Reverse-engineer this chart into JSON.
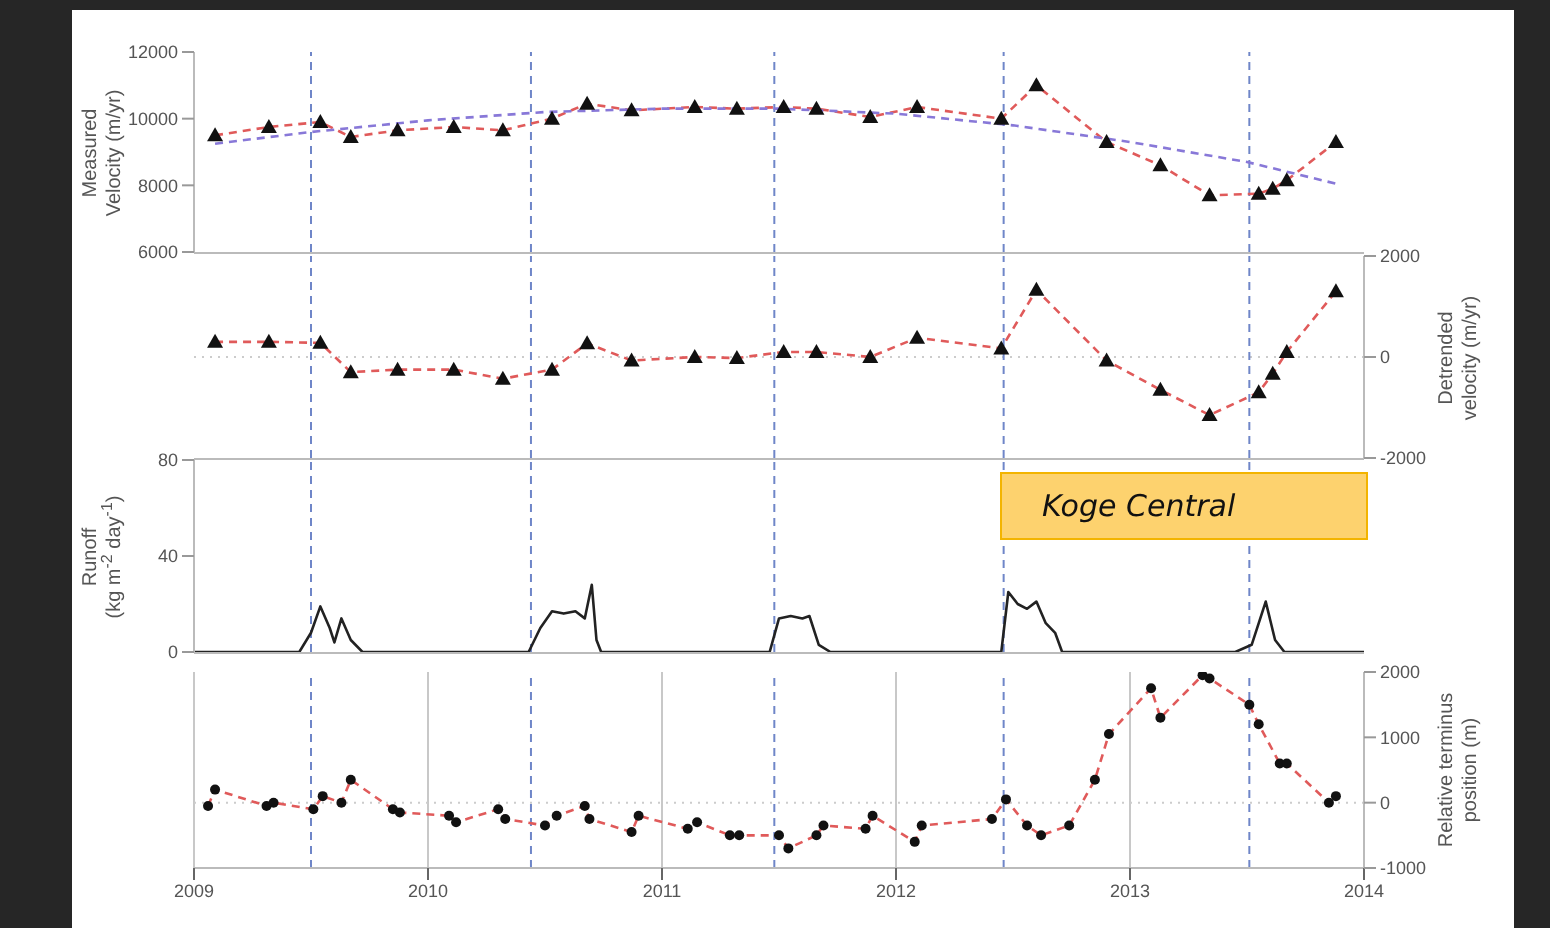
{
  "chart_data": [
    {
      "type": "line",
      "ylabel": "Measured\nVelocity (m/yr)",
      "xlim": [
        2009,
        2014
      ],
      "xticks": [
        2009,
        2010,
        2011,
        2012,
        2013,
        2014
      ],
      "ylim": [
        6000,
        12000
      ],
      "yticks": [
        6000,
        8000,
        10000,
        12000
      ],
      "tick_labels": "y",
      "grid": "x",
      "series": [
        {
          "color": "#e05a5a",
          "marker": "triangle",
          "line_style": "dashed",
          "x": [
            2009.09,
            2009.32,
            2009.54,
            2009.67,
            2009.87,
            2010.11,
            2010.32,
            2010.53,
            2010.68,
            2010.87,
            2011.14,
            2011.32,
            2011.52,
            2011.66,
            2011.89,
            2012.09,
            2012.45,
            2012.6,
            2012.9,
            2013.13,
            2013.34,
            2013.55,
            2013.61,
            2013.67,
            2013.88
          ],
          "values": [
            9500,
            9750,
            9900,
            9450,
            9650,
            9750,
            9650,
            10000,
            10450,
            10250,
            10350,
            10300,
            10350,
            10300,
            10050,
            10350,
            10000,
            11000,
            9300,
            8600,
            7700,
            7750,
            7900,
            8150,
            9300
          ]
        },
        {
          "type": "line",
          "color": "#8878d8",
          "marker": "none",
          "line_style": "dashed",
          "x": [
            2009.09,
            2009.5,
            2010,
            2010.5,
            2011,
            2011.5,
            2012,
            2012.5,
            2013,
            2013.5,
            2013.88
          ],
          "values": [
            9250,
            9600,
            9950,
            10200,
            10300,
            10300,
            10150,
            9800,
            9300,
            8700,
            8050
          ]
        }
      ],
      "ref_lines": [
        {
          "axis": "x",
          "value": 2009.5,
          "color": "#6f86c8",
          "line_style": "dashed"
        },
        {
          "axis": "x",
          "value": 2010.44,
          "color": "#6f86c8",
          "line_style": "dashed"
        },
        {
          "axis": "x",
          "value": 2011.48,
          "color": "#6f86c8",
          "line_style": "dashed"
        },
        {
          "axis": "x",
          "value": 2012.46,
          "color": "#6f86c8",
          "line_style": "dashed"
        },
        {
          "axis": "x",
          "value": 2013.51,
          "color": "#6f86c8",
          "line_style": "dashed"
        }
      ]
    },
    {
      "type": "line",
      "y2label": "Detrended\nvelocity (m/yr)",
      "xlim": [
        2009,
        2014
      ],
      "xticks": [
        2009,
        2010,
        2011,
        2012,
        2013,
        2014
      ],
      "y2lim": [
        -2000,
        2000
      ],
      "y2ticks": [
        -2000,
        0,
        2000
      ],
      "tick_labels": "y",
      "grid": "x",
      "series": [
        {
          "axis": "y2",
          "color": "#e05a5a",
          "marker": "triangle",
          "line_style": "dashed",
          "x": [
            2009.09,
            2009.32,
            2009.54,
            2009.67,
            2009.87,
            2010.11,
            2010.32,
            2010.53,
            2010.68,
            2010.87,
            2011.14,
            2011.32,
            2011.52,
            2011.66,
            2011.89,
            2012.09,
            2012.45,
            2012.6,
            2012.9,
            2013.13,
            2013.34,
            2013.55,
            2013.61,
            2013.67,
            2013.88
          ],
          "values": [
            300,
            300,
            280,
            -300,
            -250,
            -250,
            -430,
            -250,
            270,
            -70,
            0,
            -20,
            100,
            100,
            0,
            380,
            170,
            1330,
            -70,
            -650,
            -1150,
            -700,
            -330,
            100,
            1300
          ]
        }
      ],
      "ref_lines": [
        {
          "axis": "y2",
          "value": 0,
          "color": "#cccccc",
          "line_style": "dotted"
        },
        {
          "axis": "x",
          "value": 2009.5,
          "color": "#6f86c8",
          "line_style": "dashed"
        },
        {
          "axis": "x",
          "value": 2010.44,
          "color": "#6f86c8",
          "line_style": "dashed"
        },
        {
          "axis": "x",
          "value": 2011.48,
          "color": "#6f86c8",
          "line_style": "dashed"
        },
        {
          "axis": "x",
          "value": 2012.46,
          "color": "#6f86c8",
          "line_style": "dashed"
        },
        {
          "axis": "x",
          "value": 2013.51,
          "color": "#6f86c8",
          "line_style": "dashed"
        }
      ]
    },
    {
      "type": "line",
      "ylabel": "Runoff\n(kg m$^{-2}$ day$^{-1}$)",
      "annotations": [
        "Koge Central"
      ],
      "xlim": [
        2009,
        2014
      ],
      "xticks": [
        2009,
        2010,
        2011,
        2012,
        2013,
        2014
      ],
      "ylim": [
        0,
        80
      ],
      "yticks": [
        0,
        40,
        80
      ],
      "tick_labels": "y",
      "grid": "x",
      "series": [
        {
          "color": "#222222",
          "marker": "none",
          "line_style": "solid",
          "x": [
            2009,
            2009.45,
            2009.5,
            2009.54,
            2009.58,
            2009.6,
            2009.63,
            2009.67,
            2009.72,
            2010.43,
            2010.48,
            2010.53,
            2010.58,
            2010.63,
            2010.67,
            2010.7,
            2010.72,
            2010.74,
            2011.46,
            2011.5,
            2011.55,
            2011.6,
            2011.63,
            2011.67,
            2011.72,
            2012.45,
            2012.48,
            2012.52,
            2012.56,
            2012.6,
            2012.64,
            2012.68,
            2012.71,
            2013.45,
            2013.52,
            2013.58,
            2013.62,
            2013.66,
            2014
          ],
          "values": [
            0,
            0,
            8,
            19,
            10,
            4,
            14,
            5,
            0,
            0,
            10,
            17,
            16,
            17,
            14,
            28,
            5,
            0,
            0,
            14,
            15,
            14,
            15,
            3,
            0,
            0,
            25,
            20,
            18,
            21,
            12,
            8,
            0,
            0,
            3,
            21,
            5,
            0,
            0
          ]
        }
      ],
      "ref_lines": [
        {
          "axis": "x",
          "value": 2009.5,
          "color": "#6f86c8",
          "line_style": "dashed"
        },
        {
          "axis": "x",
          "value": 2010.44,
          "color": "#6f86c8",
          "line_style": "dashed"
        },
        {
          "axis": "x",
          "value": 2011.48,
          "color": "#6f86c8",
          "line_style": "dashed"
        },
        {
          "axis": "x",
          "value": 2012.46,
          "color": "#6f86c8",
          "line_style": "dashed"
        },
        {
          "axis": "x",
          "value": 2013.51,
          "color": "#6f86c8",
          "line_style": "dashed"
        }
      ]
    },
    {
      "type": "line",
      "y2label": "Relative terminus\nposition (m)",
      "xlim": [
        2009,
        2014
      ],
      "xticks": [
        2009,
        2010,
        2011,
        2012,
        2013,
        2014
      ],
      "y2lim": [
        -1000,
        2000
      ],
      "y2ticks": [
        -1000,
        0,
        1000,
        2000
      ],
      "grid": "x",
      "series": [
        {
          "axis": "y2",
          "color": "#e05a5a",
          "marker": "circle",
          "line_style": "dashed",
          "x": [
            2009.06,
            2009.09,
            2009.31,
            2009.34,
            2009.51,
            2009.55,
            2009.63,
            2009.67,
            2009.85,
            2009.88,
            2010.09,
            2010.12,
            2010.3,
            2010.33,
            2010.5,
            2010.55,
            2010.67,
            2010.69,
            2010.87,
            2010.9,
            2011.11,
            2011.15,
            2011.29,
            2011.33,
            2011.5,
            2011.54,
            2011.66,
            2011.69,
            2011.87,
            2011.9,
            2012.08,
            2012.11,
            2012.41,
            2012.47,
            2012.56,
            2012.62,
            2012.74,
            2012.85,
            2012.91,
            2013.09,
            2013.13,
            2013.31,
            2013.34,
            2013.51,
            2013.55,
            2013.64,
            2013.67,
            2013.85,
            2013.88
          ],
          "values": [
            -50,
            200,
            -50,
            0,
            -100,
            100,
            0,
            350,
            -100,
            -150,
            -200,
            -300,
            -100,
            -250,
            -350,
            -200,
            -50,
            -250,
            -450,
            -200,
            -400,
            -300,
            -500,
            -500,
            -500,
            -700,
            -500,
            -350,
            -400,
            -200,
            -600,
            -350,
            -250,
            50,
            -350,
            -500,
            -350,
            350,
            1050,
            1750,
            1300,
            1950,
            1900,
            1500,
            1200,
            600,
            600,
            0,
            100
          ]
        }
      ],
      "ref_lines": [
        {
          "axis": "y2",
          "value": 0,
          "color": "#cccccc",
          "line_style": "dotted"
        },
        {
          "axis": "x",
          "value": 2009.5,
          "color": "#6f86c8",
          "line_style": "dashed"
        },
        {
          "axis": "x",
          "value": 2010.44,
          "color": "#6f86c8",
          "line_style": "dashed"
        },
        {
          "axis": "x",
          "value": 2011.48,
          "color": "#6f86c8",
          "line_style": "dashed"
        },
        {
          "axis": "x",
          "value": 2012.46,
          "color": "#6f86c8",
          "line_style": "dashed"
        },
        {
          "axis": "x",
          "value": 2013.51,
          "color": "#6f86c8",
          "line_style": "dashed"
        }
      ]
    }
  ]
}
